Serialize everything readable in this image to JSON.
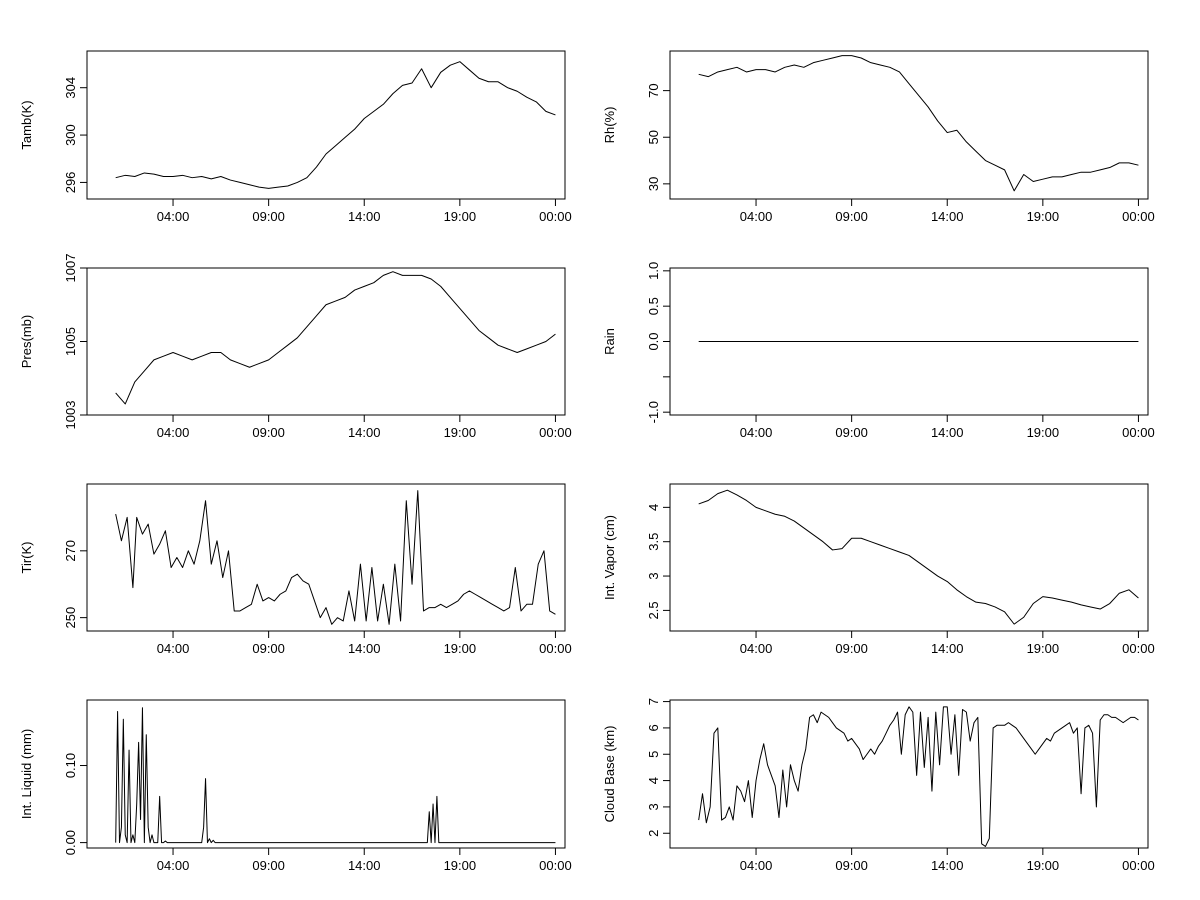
{
  "figure": {
    "background": "#ffffff",
    "line_color": "#000000"
  },
  "chart_data": [
    {
      "type": "line",
      "ylabel": "Tamb(K)",
      "x_ticks": [
        "04:00",
        "09:00",
        "14:00",
        "19:00",
        "00:00"
      ],
      "x_tick_hours": [
        4,
        9,
        14,
        19,
        24
      ],
      "xlim": [
        -0.5,
        24.5
      ],
      "y_ticks": [
        296,
        300,
        304
      ],
      "ylim": [
        294.6,
        307.1
      ],
      "series": [
        {
          "x": [
            1.0,
            1.5,
            2.0,
            2.5,
            3.0,
            3.5,
            4.0,
            4.5,
            5.0,
            5.5,
            6.0,
            6.5,
            7.0,
            7.5,
            8.0,
            8.5,
            9.0,
            9.5,
            10.0,
            10.5,
            11.0,
            11.5,
            12.0,
            12.5,
            13.0,
            13.5,
            14.0,
            14.5,
            15.0,
            15.5,
            16.0,
            16.5,
            17.0,
            17.5,
            18.0,
            18.5,
            19.0,
            19.5,
            20.0,
            20.5,
            21.0,
            21.5,
            22.0,
            22.5,
            23.0,
            23.5,
            24.0
          ],
          "values": [
            296.4,
            296.6,
            296.5,
            296.8,
            296.7,
            296.5,
            296.5,
            296.6,
            296.4,
            296.5,
            296.3,
            296.5,
            296.2,
            296.0,
            295.8,
            295.6,
            295.5,
            295.6,
            295.7,
            296.0,
            296.4,
            297.3,
            298.4,
            299.1,
            299.8,
            300.5,
            301.4,
            302.0,
            302.6,
            303.5,
            304.2,
            304.4,
            305.6,
            304.0,
            305.3,
            305.9,
            306.2,
            305.5,
            304.8,
            304.5,
            304.5,
            304.0,
            303.7,
            303.2,
            302.8,
            302.0,
            301.7
          ]
        }
      ]
    },
    {
      "type": "line",
      "ylabel": "Rh(%)",
      "x_ticks": [
        "04:00",
        "09:00",
        "14:00",
        "19:00",
        "00:00"
      ],
      "x_tick_hours": [
        4,
        9,
        14,
        19,
        24
      ],
      "xlim": [
        -0.5,
        24.5
      ],
      "y_ticks": [
        30,
        50,
        70
      ],
      "ylim": [
        23.5,
        87.0
      ],
      "series": [
        {
          "x": [
            1.0,
            1.5,
            2.0,
            2.5,
            3.0,
            3.5,
            4.0,
            4.5,
            5.0,
            5.5,
            6.0,
            6.5,
            7.0,
            7.5,
            8.0,
            8.5,
            9.0,
            9.5,
            10.0,
            10.5,
            11.0,
            11.5,
            12.0,
            12.5,
            13.0,
            13.5,
            14.0,
            14.5,
            15.0,
            15.5,
            16.0,
            16.5,
            17.0,
            17.5,
            18.0,
            18.5,
            19.0,
            19.5,
            20.0,
            20.5,
            21.0,
            21.5,
            22.0,
            22.5,
            23.0,
            23.5,
            24.0
          ],
          "values": [
            77,
            76,
            78,
            79,
            80,
            78,
            79,
            79,
            78,
            80,
            81,
            80,
            82,
            83,
            84,
            85,
            85,
            84,
            82,
            81,
            80,
            78,
            73,
            68,
            63,
            57,
            52,
            53,
            48,
            44,
            40,
            38,
            36,
            27,
            34,
            31,
            32,
            33,
            33,
            34,
            35,
            35,
            36,
            37,
            39,
            39,
            38
          ]
        }
      ]
    },
    {
      "type": "line",
      "ylabel": "Pres(mb)",
      "x_ticks": [
        "04:00",
        "09:00",
        "14:00",
        "19:00",
        "00:00"
      ],
      "x_tick_hours": [
        4,
        9,
        14,
        19,
        24
      ],
      "xlim": [
        -0.5,
        24.5
      ],
      "y_ticks": [
        1003,
        1005,
        1007
      ],
      "ylim": [
        1003.0,
        1007.0
      ],
      "series": [
        {
          "x": [
            1.0,
            1.5,
            2.0,
            2.5,
            3.0,
            3.5,
            4.0,
            4.5,
            5.0,
            5.5,
            6.0,
            6.5,
            7.0,
            7.5,
            8.0,
            8.5,
            9.0,
            9.5,
            10.0,
            10.5,
            11.0,
            11.5,
            12.0,
            12.5,
            13.0,
            13.5,
            14.0,
            14.5,
            15.0,
            15.5,
            16.0,
            16.5,
            17.0,
            17.5,
            18.0,
            18.5,
            19.0,
            19.5,
            20.0,
            20.5,
            21.0,
            21.5,
            22.0,
            22.5,
            23.0,
            23.5,
            24.0
          ],
          "values": [
            1003.6,
            1003.3,
            1003.9,
            1004.2,
            1004.5,
            1004.6,
            1004.7,
            1004.6,
            1004.5,
            1004.6,
            1004.7,
            1004.7,
            1004.5,
            1004.4,
            1004.3,
            1004.4,
            1004.5,
            1004.7,
            1004.9,
            1005.1,
            1005.4,
            1005.7,
            1006.0,
            1006.1,
            1006.2,
            1006.4,
            1006.5,
            1006.6,
            1006.8,
            1006.9,
            1006.8,
            1006.8,
            1006.8,
            1006.7,
            1006.5,
            1006.2,
            1005.9,
            1005.6,
            1005.3,
            1005.1,
            1004.9,
            1004.8,
            1004.7,
            1004.8,
            1004.9,
            1005.0,
            1005.2
          ]
        }
      ]
    },
    {
      "type": "line",
      "ylabel": "Rain",
      "x_ticks": [
        "04:00",
        "09:00",
        "14:00",
        "19:00",
        "00:00"
      ],
      "x_tick_hours": [
        4,
        9,
        14,
        19,
        24
      ],
      "xlim": [
        -0.5,
        24.5
      ],
      "y_ticks": [
        -1.0,
        -0.5,
        0.0,
        0.5,
        1.0
      ],
      "y_tick_labels": [
        "-1.0",
        "",
        "0.0",
        "0.5",
        "1.0"
      ],
      "ylim": [
        -1.04,
        1.04
      ],
      "series": [
        {
          "x": [
            1.0,
            24.0
          ],
          "values": [
            0.0,
            0.0
          ]
        }
      ]
    },
    {
      "type": "line",
      "ylabel": "Tir(K)",
      "x_ticks": [
        "04:00",
        "09:00",
        "14:00",
        "19:00",
        "00:00"
      ],
      "x_tick_hours": [
        4,
        9,
        14,
        19,
        24
      ],
      "xlim": [
        -0.5,
        24.5
      ],
      "y_ticks": [
        250,
        270
      ],
      "ylim": [
        246.0,
        290.0
      ],
      "series": [
        {
          "x": [
            1.0,
            1.3,
            1.6,
            1.9,
            2.1,
            2.4,
            2.7,
            3.0,
            3.3,
            3.6,
            3.9,
            4.2,
            4.5,
            4.8,
            5.1,
            5.4,
            5.7,
            6.0,
            6.3,
            6.6,
            6.9,
            7.2,
            7.5,
            7.8,
            8.1,
            8.4,
            8.7,
            9.0,
            9.3,
            9.6,
            9.9,
            10.2,
            10.5,
            10.8,
            11.1,
            11.4,
            11.7,
            12.0,
            12.3,
            12.6,
            12.9,
            13.2,
            13.5,
            13.8,
            14.1,
            14.4,
            14.7,
            15.0,
            15.3,
            15.6,
            15.9,
            16.2,
            16.5,
            16.8,
            17.1,
            17.4,
            17.7,
            18.0,
            18.3,
            18.6,
            18.9,
            19.2,
            19.5,
            19.8,
            20.1,
            20.4,
            20.7,
            21.0,
            21.3,
            21.6,
            21.9,
            22.2,
            22.5,
            22.8,
            23.1,
            23.4,
            23.7,
            24.0
          ],
          "values": [
            281,
            273,
            280,
            259,
            280,
            275,
            278,
            269,
            272,
            276,
            265,
            268,
            265,
            270,
            266,
            273,
            285,
            266,
            273,
            262,
            270,
            252,
            252,
            253,
            254,
            260,
            255,
            256,
            255,
            257,
            258,
            262,
            263,
            261,
            260,
            255,
            250,
            253,
            248,
            250,
            249,
            258,
            249,
            266,
            249,
            265,
            249,
            260,
            248,
            266,
            249,
            285,
            260,
            288,
            252,
            253,
            253,
            254,
            253,
            254,
            255,
            257,
            258,
            257,
            256,
            255,
            254,
            253,
            252,
            253,
            265,
            252,
            254,
            254,
            266,
            270,
            252,
            251
          ]
        }
      ]
    },
    {
      "type": "line",
      "ylabel": "Int. Vapor (cm)",
      "x_ticks": [
        "04:00",
        "09:00",
        "14:00",
        "19:00",
        "00:00"
      ],
      "x_tick_hours": [
        4,
        9,
        14,
        19,
        24
      ],
      "xlim": [
        -0.5,
        24.5
      ],
      "y_ticks": [
        2.5,
        3.0,
        3.5,
        4.0
      ],
      "ylim": [
        2.2,
        4.34
      ],
      "series": [
        {
          "x": [
            1.0,
            1.5,
            2.0,
            2.5,
            3.0,
            3.5,
            4.0,
            4.5,
            5.0,
            5.5,
            6.0,
            6.5,
            7.0,
            7.5,
            8.0,
            8.5,
            9.0,
            9.5,
            10.0,
            10.5,
            11.0,
            11.5,
            12.0,
            12.5,
            13.0,
            13.5,
            14.0,
            14.5,
            15.0,
            15.5,
            16.0,
            16.5,
            17.0,
            17.5,
            18.0,
            18.5,
            19.0,
            19.5,
            20.0,
            20.5,
            21.0,
            21.5,
            22.0,
            22.5,
            23.0,
            23.5,
            24.0
          ],
          "values": [
            4.05,
            4.1,
            4.2,
            4.25,
            4.18,
            4.1,
            4.0,
            3.95,
            3.9,
            3.87,
            3.8,
            3.7,
            3.6,
            3.5,
            3.38,
            3.4,
            3.55,
            3.55,
            3.5,
            3.45,
            3.4,
            3.35,
            3.3,
            3.2,
            3.1,
            3.0,
            2.92,
            2.8,
            2.7,
            2.62,
            2.6,
            2.55,
            2.48,
            2.3,
            2.4,
            2.6,
            2.7,
            2.68,
            2.65,
            2.62,
            2.58,
            2.55,
            2.52,
            2.6,
            2.75,
            2.8,
            2.68
          ]
        }
      ]
    },
    {
      "type": "line",
      "ylabel": "Int. Liquid (mm)",
      "x_ticks": [
        "04:00",
        "09:00",
        "14:00",
        "19:00",
        "00:00"
      ],
      "x_tick_hours": [
        4,
        9,
        14,
        19,
        24
      ],
      "xlim": [
        -0.5,
        24.5
      ],
      "y_ticks": [
        0.0,
        0.1
      ],
      "y_tick_labels": [
        "0.00",
        "0.10"
      ],
      "ylim": [
        -0.007,
        0.185
      ],
      "series": [
        {
          "x": [
            1.0,
            1.1,
            1.2,
            1.3,
            1.4,
            1.5,
            1.6,
            1.7,
            1.8,
            1.9,
            2.0,
            2.1,
            2.2,
            2.3,
            2.4,
            2.5,
            2.6,
            2.7,
            2.8,
            2.9,
            3.0,
            3.1,
            3.2,
            3.3,
            3.4,
            3.5,
            3.6,
            3.7,
            3.8,
            5.5,
            5.6,
            5.7,
            5.8,
            5.9,
            6.0,
            6.1,
            6.2,
            17.3,
            17.4,
            17.5,
            17.6,
            17.7,
            17.8,
            17.9,
            18.0,
            24.0
          ],
          "values": [
            0.0,
            0.17,
            0.0,
            0.02,
            0.16,
            0.01,
            0.0,
            0.12,
            0.0,
            0.01,
            0.0,
            0.05,
            0.13,
            0.03,
            0.175,
            0.0,
            0.14,
            0.02,
            0.0,
            0.01,
            0.0,
            0.0,
            0.0,
            0.06,
            0.0,
            0.0,
            0.002,
            0.0,
            0.0,
            0.0,
            0.02,
            0.083,
            0.0,
            0.005,
            0.0,
            0.003,
            0.0,
            0.0,
            0.04,
            0.0,
            0.05,
            0.0,
            0.06,
            0.0,
            0.0,
            0.0
          ]
        }
      ]
    },
    {
      "type": "line",
      "ylabel": "Cloud Base (km)",
      "x_ticks": [
        "04:00",
        "09:00",
        "14:00",
        "19:00",
        "00:00"
      ],
      "x_tick_hours": [
        4,
        9,
        14,
        19,
        24
      ],
      "xlim": [
        -0.5,
        24.5
      ],
      "y_ticks": [
        2,
        3,
        4,
        5,
        6,
        7
      ],
      "ylim": [
        1.44,
        7.06
      ],
      "series": [
        {
          "x": [
            1.0,
            1.2,
            1.4,
            1.6,
            1.8,
            2.0,
            2.2,
            2.4,
            2.6,
            2.8,
            3.0,
            3.2,
            3.4,
            3.6,
            3.8,
            4.0,
            4.2,
            4.4,
            4.6,
            4.8,
            5.0,
            5.2,
            5.4,
            5.6,
            5.8,
            6.0,
            6.2,
            6.4,
            6.6,
            6.8,
            7.0,
            7.2,
            7.4,
            7.6,
            7.8,
            8.0,
            8.2,
            8.4,
            8.6,
            8.8,
            9.0,
            9.2,
            9.4,
            9.6,
            9.8,
            10.0,
            10.2,
            10.4,
            10.6,
            10.8,
            11.0,
            11.2,
            11.4,
            11.6,
            11.8,
            12.0,
            12.2,
            12.4,
            12.6,
            12.8,
            13.0,
            13.2,
            13.4,
            13.6,
            13.8,
            14.0,
            14.2,
            14.4,
            14.6,
            14.8,
            15.0,
            15.2,
            15.4,
            15.6,
            15.8,
            16.0,
            16.2,
            16.4,
            16.6,
            16.8,
            17.0,
            17.2,
            17.4,
            17.6,
            17.8,
            18.0,
            18.2,
            18.4,
            18.6,
            18.8,
            19.0,
            19.2,
            19.4,
            19.6,
            19.8,
            20.0,
            20.2,
            20.4,
            20.6,
            20.8,
            21.0,
            21.2,
            21.4,
            21.6,
            21.8,
            22.0,
            22.2,
            22.4,
            22.6,
            22.8,
            23.0,
            23.2,
            23.4,
            23.6,
            23.8,
            24.0
          ],
          "values": [
            2.5,
            3.5,
            2.4,
            3.0,
            5.8,
            6.0,
            2.5,
            2.6,
            3.0,
            2.5,
            3.8,
            3.6,
            3.2,
            4.0,
            2.6,
            4.0,
            4.8,
            5.4,
            4.6,
            4.2,
            3.8,
            2.6,
            4.4,
            3.0,
            4.6,
            4.0,
            3.6,
            4.6,
            5.2,
            6.4,
            6.5,
            6.2,
            6.6,
            6.5,
            6.4,
            6.2,
            6.0,
            5.9,
            5.8,
            5.5,
            5.6,
            5.4,
            5.2,
            4.8,
            5.0,
            5.2,
            5.0,
            5.3,
            5.5,
            5.8,
            6.1,
            6.3,
            6.6,
            5.0,
            6.5,
            6.8,
            6.6,
            4.2,
            6.6,
            4.5,
            6.4,
            3.6,
            6.6,
            4.6,
            6.8,
            6.8,
            5.0,
            6.5,
            4.2,
            6.7,
            6.6,
            5.5,
            6.2,
            6.4,
            1.6,
            1.5,
            1.8,
            6.0,
            6.1,
            6.1,
            6.1,
            6.2,
            6.1,
            6.0,
            5.8,
            5.6,
            5.4,
            5.2,
            5.0,
            5.2,
            5.4,
            5.6,
            5.5,
            5.8,
            5.9,
            6.0,
            6.1,
            6.2,
            5.8,
            6.0,
            3.5,
            6.0,
            6.1,
            5.8,
            3.0,
            6.3,
            6.5,
            6.5,
            6.4,
            6.4,
            6.3,
            6.2,
            6.3,
            6.4,
            6.4,
            6.3
          ]
        }
      ]
    }
  ]
}
